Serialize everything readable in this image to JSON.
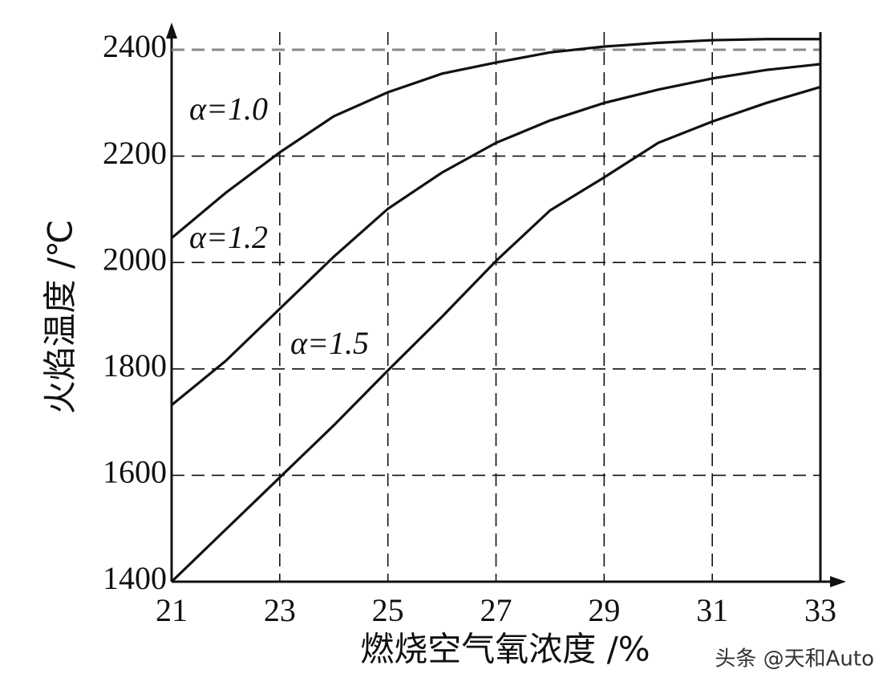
{
  "chart_data": {
    "type": "line",
    "x_label": "燃烧空气氧浓度 /%",
    "y_label": "火焰温度 /℃",
    "x": [
      21,
      22,
      23,
      24,
      25,
      26,
      27,
      28,
      29,
      30,
      31,
      32,
      33
    ],
    "series": [
      {
        "name": "α=1.0",
        "color": "#111111",
        "values": [
          2046,
          2131,
          2207,
          2275,
          2320,
          2355,
          2376,
          2395,
          2406,
          2413,
          2418,
          2420,
          2420
        ]
      },
      {
        "name": "α=1.2",
        "color": "#111111",
        "values": [
          1732,
          1815,
          1913,
          2011,
          2101,
          2169,
          2225,
          2267,
          2300,
          2325,
          2346,
          2362,
          2373
        ]
      },
      {
        "name": "α=1.5",
        "color": "#111111",
        "values": [
          1400,
          1498,
          1596,
          1694,
          1797,
          1898,
          2003,
          2098,
          2160,
          2225,
          2265,
          2300,
          2330
        ]
      }
    ],
    "xlim": [
      21,
      33
    ],
    "ylim": [
      1400,
      2400
    ],
    "xticks": [
      21,
      23,
      25,
      27,
      29,
      31,
      33
    ],
    "yticks": [
      1400,
      1600,
      1800,
      2000,
      2200,
      2400
    ],
    "grid": true,
    "watermark": "头条 @天和Auto"
  }
}
